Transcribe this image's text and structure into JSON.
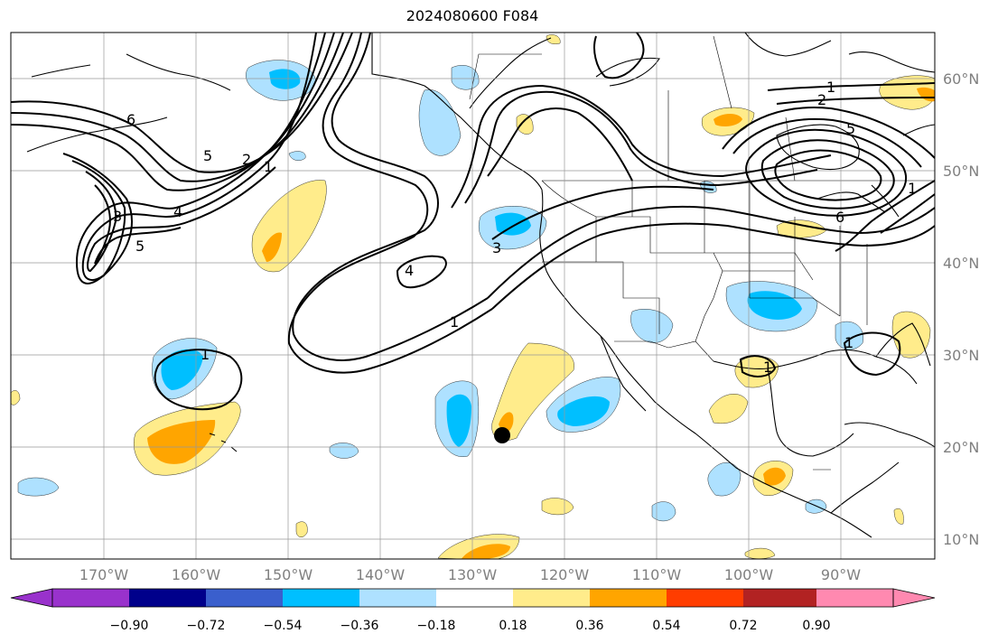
{
  "title": "2024080600 F084",
  "lon_labels": [
    "170°W",
    "160°W",
    "150°W",
    "140°W",
    "130°W",
    "120°W",
    "110°W",
    "100°W",
    "90°W"
  ],
  "lat_labels": [
    "60°N",
    "50°N",
    "40°N",
    "30°N",
    "20°N",
    "10°N"
  ],
  "colorbar": {
    "labels": [
      "−0.90",
      "−0.72",
      "−0.54",
      "−0.36",
      "−0.18",
      "0.18",
      "0.36",
      "0.54",
      "0.72",
      "0.90"
    ],
    "colors": [
      "#9932cc",
      "#00008b",
      "#3a5fcd",
      "#00bfff",
      "#aee1ff",
      "#ffffff",
      "#ffec8b",
      "#ffa500",
      "#ff3d00",
      "#b22222",
      "#ff89b0"
    ]
  },
  "contour_labels": [
    "6",
    "5",
    "2",
    "1",
    "3",
    "4",
    "5",
    "4",
    "3",
    "1",
    "1",
    "1",
    "2",
    "5",
    "6",
    "1",
    "1",
    "1"
  ],
  "colors": {
    "cool": "#00bfff",
    "cool_light": "#aee1ff",
    "warm_light": "#ffec8b",
    "warm": "#ffa500"
  }
}
